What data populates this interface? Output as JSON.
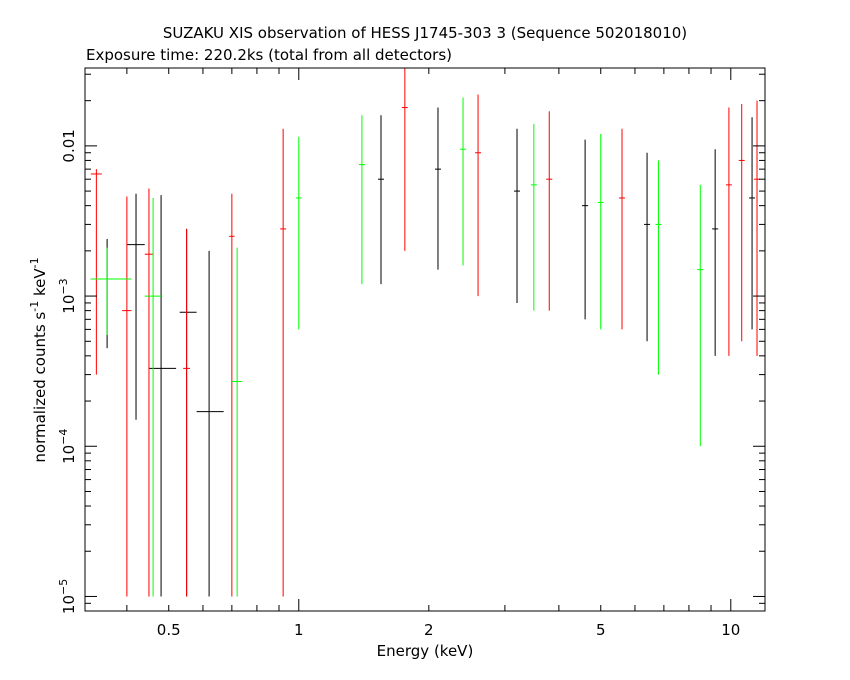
{
  "chart_data": {
    "type": "scatter",
    "title": "SUZAKU XIS observation of HESS J1745-303 3 (Sequence 502018010)",
    "subtitle": "Exposure time: 220.2ks (total from all detectors)",
    "xlabel": "Energy (keV)",
    "ylabel": {
      "prefix": "normalized counts s",
      "exp1": "-1",
      "mid": " keV",
      "exp2": "-1"
    },
    "x_scale": "log",
    "y_scale": "log",
    "xlim": [
      0.32,
      12.0
    ],
    "ylim": [
      8e-06,
      0.033
    ],
    "x_ticks": [
      {
        "value": 0.5,
        "label": "0.5"
      },
      {
        "value": 1,
        "label": "1"
      },
      {
        "value": 2,
        "label": "2"
      },
      {
        "value": 5,
        "label": "5"
      },
      {
        "value": 10,
        "label": "10"
      }
    ],
    "y_ticks": [
      {
        "value": 0.01,
        "label": "0.01",
        "exp": ""
      },
      {
        "value": 0.001,
        "label": "10",
        "exp": "−3"
      },
      {
        "value": 0.0001,
        "label": "10",
        "exp": "−4"
      },
      {
        "value": 1e-05,
        "label": "10",
        "exp": "−5"
      }
    ],
    "series": [
      {
        "color": "#000000",
        "points": [
          {
            "x": 0.36,
            "xerr": [
              0.33,
              0.4
            ],
            "y": 0.0013,
            "yerr": [
              0.00045,
              0.0024
            ]
          },
          {
            "x": 0.42,
            "xerr": [
              0.4,
              0.44
            ],
            "y": 0.0022,
            "yerr": [
              0.00015,
              0.0048
            ]
          },
          {
            "x": 0.48,
            "xerr": [
              0.45,
              0.52
            ],
            "y": 0.00033,
            "yerr": [
              1e-05,
              0.0047
            ]
          },
          {
            "x": 0.55,
            "xerr": [
              0.53,
              0.58
            ],
            "y": 0.00078,
            "yerr": [
              1e-05,
              0.0028
            ]
          },
          {
            "x": 0.62,
            "xerr": [
              0.58,
              0.67
            ],
            "y": 0.00017,
            "yerr": [
              1e-05,
              0.002
            ]
          },
          {
            "x": 1.55,
            "y": 0.006,
            "yerr": [
              0.0012,
              0.016
            ]
          },
          {
            "x": 2.1,
            "y": 0.007,
            "yerr": [
              0.0015,
              0.018
            ]
          },
          {
            "x": 3.2,
            "y": 0.005,
            "yerr": [
              0.0009,
              0.013
            ]
          },
          {
            "x": 4.6,
            "y": 0.004,
            "yerr": [
              0.0007,
              0.011
            ]
          },
          {
            "x": 6.4,
            "y": 0.003,
            "yerr": [
              0.0005,
              0.009
            ]
          },
          {
            "x": 9.2,
            "y": 0.0028,
            "yerr": [
              0.0004,
              0.0095
            ]
          },
          {
            "x": 11.2,
            "y": 0.0045,
            "yerr": [
              0.0006,
              0.0155
            ]
          }
        ]
      },
      {
        "color": "#ff0000",
        "points": [
          {
            "x": 0.34,
            "xerr": [
              0.33,
              0.35
            ],
            "y": 0.0065,
            "yerr": [
              0.0003,
              0.007
            ]
          },
          {
            "x": 0.4,
            "xerr": [
              0.39,
              0.41
            ],
            "y": 0.0008,
            "yerr": [
              1e-05,
              0.0046
            ]
          },
          {
            "x": 0.45,
            "xerr": [
              0.44,
              0.46
            ],
            "y": 0.0019,
            "yerr": [
              1e-05,
              0.0052
            ]
          },
          {
            "x": 0.55,
            "xerr": [
              0.54,
              0.56
            ],
            "y": 0.00033,
            "yerr": [
              1e-05,
              0.0028
            ]
          },
          {
            "x": 0.7,
            "xerr": [
              0.69,
              0.71
            ],
            "y": 0.0025,
            "yerr": [
              1e-05,
              0.0048
            ]
          },
          {
            "x": 0.92,
            "y": 0.0028,
            "yerr": [
              1e-05,
              0.013
            ]
          },
          {
            "x": 1.76,
            "y": 0.018,
            "yerr": [
              0.002,
              0.033
            ]
          },
          {
            "x": 2.6,
            "y": 0.009,
            "yerr": [
              0.001,
              0.022
            ]
          },
          {
            "x": 3.8,
            "y": 0.006,
            "yerr": [
              0.0008,
              0.017
            ]
          },
          {
            "x": 5.6,
            "y": 0.0045,
            "yerr": [
              0.0006,
              0.013
            ]
          },
          {
            "x": 9.9,
            "y": 0.0055,
            "yerr": [
              0.0004,
              0.018
            ]
          },
          {
            "x": 10.6,
            "y": 0.008,
            "yerr": [
              0.0005,
              0.019
            ]
          },
          {
            "x": 11.5,
            "y": 0.006,
            "yerr": [
              0.0004,
              0.02
            ]
          }
        ]
      },
      {
        "color": "#00ff00",
        "points": [
          {
            "x": 0.36,
            "xerr": [
              0.33,
              0.41
            ],
            "y": 0.0013,
            "yerr": [
              0.00055,
              0.0021
            ]
          },
          {
            "x": 0.46,
            "xerr": [
              0.44,
              0.48
            ],
            "y": 0.001,
            "yerr": [
              1e-05,
              0.0045
            ]
          },
          {
            "x": 0.72,
            "xerr": [
              0.7,
              0.74
            ],
            "y": 0.00027,
            "yerr": [
              1e-05,
              0.0021
            ]
          },
          {
            "x": 1.0,
            "y": 0.0045,
            "yerr": [
              0.0006,
              0.0115
            ]
          },
          {
            "x": 1.4,
            "y": 0.0075,
            "yerr": [
              0.0012,
              0.016
            ]
          },
          {
            "x": 2.4,
            "y": 0.0095,
            "yerr": [
              0.0016,
              0.021
            ]
          },
          {
            "x": 3.5,
            "y": 0.0055,
            "yerr": [
              0.0008,
              0.014
            ]
          },
          {
            "x": 5.0,
            "y": 0.0042,
            "yerr": [
              0.0006,
              0.012
            ]
          },
          {
            "x": 6.8,
            "y": 0.003,
            "yerr": [
              0.0003,
              0.008
            ]
          },
          {
            "x": 8.5,
            "y": 0.0015,
            "yerr": [
              0.0001,
              0.0055
            ]
          }
        ]
      }
    ],
    "grid": false,
    "legend": "none"
  }
}
